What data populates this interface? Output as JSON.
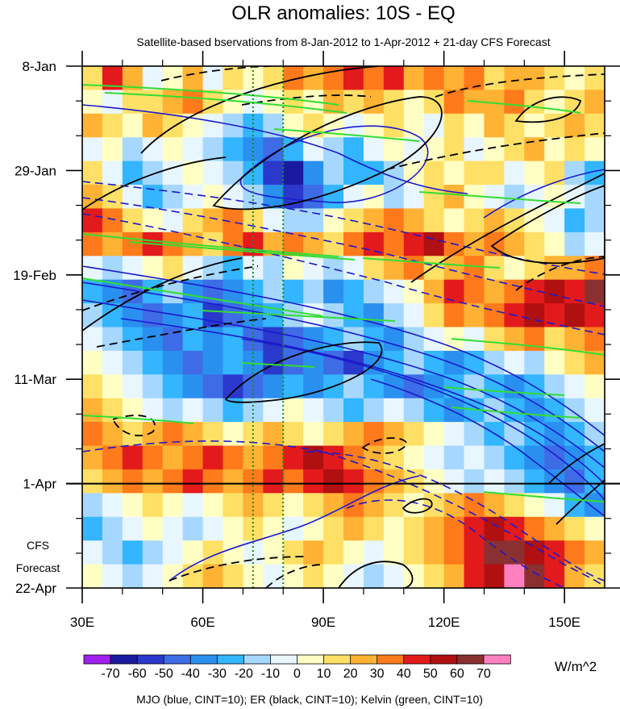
{
  "chart_data": {
    "type": "heatmap",
    "title": "OLR anomalies: 10S - EQ",
    "subtitle": "Satellite-based bservations from 8-Jan-2012 to 1-Apr-2012 + 21-day CFS Forecast",
    "x_axis": {
      "range": [
        30,
        160
      ],
      "ticks": [
        {
          "value": 30,
          "label": "30E"
        },
        {
          "value": 60,
          "label": "60E"
        },
        {
          "value": 90,
          "label": "90E"
        },
        {
          "value": 120,
          "label": "120E"
        },
        {
          "value": 150,
          "label": "150E"
        }
      ]
    },
    "y_axis": {
      "range_days": [
        0,
        105
      ],
      "ticks": [
        {
          "day": 0,
          "label": "8-Jan"
        },
        {
          "day": 21,
          "label": "29-Jan"
        },
        {
          "day": 42,
          "label": "19-Feb"
        },
        {
          "day": 63,
          "label": "11-Mar"
        },
        {
          "day": 84,
          "label": "1-Apr"
        },
        {
          "day": 105,
          "label": "22-Apr"
        }
      ]
    },
    "forecast": {
      "start_day": 84,
      "label_line1": "CFS",
      "label_line2": "Forecast"
    },
    "reference_lines_lon": [
      72.5,
      80
    ],
    "colorbar": {
      "units": "W/m^2",
      "levels": [
        -70,
        -60,
        -50,
        -40,
        -30,
        -20,
        -10,
        0,
        10,
        20,
        30,
        40,
        50,
        60,
        70
      ],
      "labels": [
        "-70",
        "-60",
        "-50",
        "-40",
        "-30",
        "-20",
        "-10",
        "0",
        "10",
        "20",
        "30",
        "40",
        "50",
        "60",
        "70"
      ],
      "colors": [
        "#a020f0",
        "#1a1aa0",
        "#2a38cc",
        "#3e6ce6",
        "#2a90f0",
        "#33b5ff",
        "#a6d8ff",
        "#e8f6ff",
        "#ffffc4",
        "#ffe066",
        "#ffb233",
        "#ff7a1a",
        "#e31a1c",
        "#b01010",
        "#8a3030",
        "#ff80c0"
      ]
    },
    "contours": {
      "mjo": {
        "color": "#1a1acc",
        "cint": 10
      },
      "er": {
        "color": "#000000",
        "cint": 10
      },
      "kelvin": {
        "color": "#33dd33",
        "cint": 10
      }
    },
    "footnote": "MJO (blue, CINT=10); ER (black, CINT=10); Kelvin (green, CINT=10)",
    "field": [
      [
        10,
        40,
        20,
        -10,
        0,
        20,
        -10,
        10,
        0,
        10,
        30,
        20,
        30,
        40,
        30,
        40,
        20,
        30,
        20,
        30,
        10,
        20,
        20,
        10,
        0,
        10
      ],
      [
        0,
        -10,
        10,
        10,
        20,
        30,
        10,
        0,
        -10,
        0,
        10,
        0,
        20,
        10,
        20,
        10,
        0,
        10,
        30,
        20,
        20,
        30,
        10,
        0,
        10,
        20
      ],
      [
        20,
        10,
        0,
        20,
        10,
        0,
        -10,
        -20,
        -30,
        -20,
        0,
        10,
        0,
        -10,
        0,
        10,
        0,
        -10,
        10,
        0,
        20,
        10,
        0,
        10,
        20,
        10
      ],
      [
        -10,
        0,
        -20,
        -10,
        0,
        -10,
        -20,
        -30,
        -40,
        -50,
        -30,
        -10,
        -20,
        -30,
        -10,
        0,
        -10,
        0,
        10,
        -10,
        0,
        10,
        20,
        0,
        10,
        0
      ],
      [
        10,
        -10,
        -30,
        -20,
        -10,
        0,
        -10,
        -20,
        -30,
        -60,
        -70,
        -40,
        -20,
        -30,
        -30,
        -20,
        0,
        10,
        0,
        10,
        10,
        -10,
        0,
        10,
        -20,
        -30
      ],
      [
        20,
        10,
        -10,
        -30,
        -20,
        -10,
        0,
        -10,
        -20,
        -40,
        -60,
        -50,
        -30,
        -10,
        0,
        -20,
        -10,
        10,
        20,
        0,
        -10,
        -20,
        -10,
        0,
        -10,
        -20
      ],
      [
        40,
        30,
        10,
        0,
        -10,
        10,
        20,
        30,
        10,
        -10,
        -20,
        -20,
        0,
        10,
        20,
        30,
        20,
        10,
        0,
        10,
        20,
        10,
        0,
        -10,
        -30,
        -20
      ],
      [
        30,
        20,
        30,
        40,
        30,
        20,
        10,
        30,
        40,
        20,
        30,
        20,
        10,
        30,
        40,
        30,
        40,
        50,
        30,
        20,
        30,
        20,
        10,
        0,
        -20,
        -10
      ],
      [
        -10,
        -20,
        -10,
        0,
        10,
        -10,
        -20,
        -30,
        -10,
        -20,
        0,
        -10,
        -20,
        -10,
        10,
        20,
        30,
        10,
        20,
        30,
        10,
        0,
        10,
        20,
        20,
        30
      ],
      [
        -30,
        -40,
        -50,
        -30,
        -20,
        -40,
        -50,
        -40,
        -30,
        -20,
        -30,
        -20,
        -40,
        -30,
        -20,
        -10,
        0,
        20,
        40,
        30,
        20,
        30,
        40,
        50,
        40,
        60
      ],
      [
        -20,
        -30,
        -40,
        -50,
        -40,
        -30,
        -60,
        -50,
        -40,
        -30,
        -20,
        -10,
        -20,
        -30,
        -40,
        -20,
        -10,
        10,
        30,
        20,
        30,
        40,
        50,
        40,
        50,
        40
      ],
      [
        -10,
        -20,
        -30,
        -40,
        -50,
        -30,
        -40,
        -30,
        -50,
        -60,
        -50,
        -40,
        -30,
        -20,
        -30,
        -40,
        -20,
        -10,
        0,
        -10,
        10,
        20,
        30,
        10,
        20,
        30
      ],
      [
        0,
        -10,
        -20,
        -30,
        -40,
        -50,
        -40,
        -30,
        -40,
        -60,
        -50,
        -40,
        -50,
        -60,
        -40,
        -30,
        -20,
        -30,
        -40,
        -30,
        -20,
        -10,
        -20,
        0,
        10,
        20
      ],
      [
        10,
        0,
        -10,
        -20,
        -30,
        -40,
        -50,
        -60,
        -50,
        -40,
        -30,
        -40,
        -30,
        -20,
        -30,
        -40,
        -50,
        -40,
        -30,
        -20,
        -30,
        -40,
        -30,
        -20,
        -10,
        0
      ],
      [
        20,
        10,
        0,
        -10,
        -20,
        -10,
        -20,
        -30,
        -20,
        -10,
        0,
        -10,
        -20,
        -30,
        -20,
        -10,
        -20,
        -30,
        -40,
        -30,
        -20,
        -30,
        -40,
        -30,
        -20,
        -10
      ],
      [
        30,
        20,
        10,
        20,
        30,
        20,
        10,
        0,
        10,
        20,
        10,
        0,
        10,
        20,
        30,
        20,
        10,
        0,
        -10,
        -20,
        -30,
        -20,
        -30,
        -40,
        -30,
        -20
      ],
      [
        20,
        30,
        40,
        30,
        20,
        30,
        40,
        30,
        20,
        30,
        40,
        50,
        40,
        30,
        20,
        10,
        0,
        -10,
        -20,
        -10,
        -20,
        -30,
        -40,
        -50,
        -40,
        -30
      ],
      [
        10,
        20,
        30,
        20,
        30,
        40,
        30,
        20,
        30,
        40,
        30,
        40,
        50,
        40,
        30,
        20,
        10,
        0,
        -10,
        -20,
        -10,
        -20,
        -30,
        -40,
        -50,
        -30
      ],
      [
        -20,
        -10,
        0,
        10,
        0,
        -10,
        0,
        10,
        20,
        10,
        0,
        10,
        20,
        30,
        20,
        10,
        0,
        10,
        20,
        30,
        20,
        10,
        0,
        -10,
        -30,
        -40
      ],
      [
        -30,
        -20,
        -10,
        0,
        -10,
        -20,
        -10,
        0,
        10,
        0,
        -10,
        0,
        10,
        20,
        10,
        0,
        10,
        20,
        30,
        40,
        50,
        40,
        30,
        20,
        10,
        0
      ],
      [
        -10,
        -20,
        -30,
        -20,
        -10,
        0,
        10,
        0,
        -10,
        0,
        10,
        20,
        10,
        0,
        -10,
        0,
        10,
        20,
        30,
        40,
        60,
        60,
        50,
        40,
        30,
        20
      ],
      [
        0,
        -10,
        -20,
        -10,
        0,
        10,
        20,
        10,
        0,
        -10,
        0,
        10,
        0,
        -10,
        -20,
        -10,
        0,
        10,
        20,
        40,
        50,
        70,
        60,
        40,
        20,
        10
      ]
    ]
  }
}
